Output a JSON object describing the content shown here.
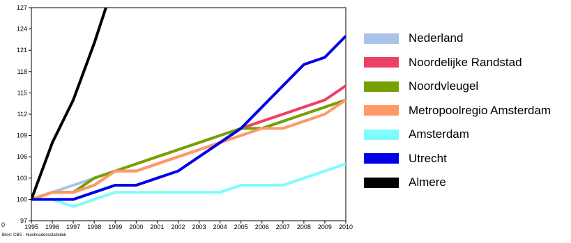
{
  "chart_data": {
    "type": "line",
    "title": "",
    "xlabel": "",
    "ylabel": "",
    "x": [
      1995,
      1996,
      1997,
      1998,
      1999,
      2000,
      2001,
      2002,
      2003,
      2004,
      2005,
      2006,
      2007,
      2008,
      2009,
      2010
    ],
    "xlim": [
      1995,
      2010
    ],
    "ylim": [
      97,
      127
    ],
    "yticks": [
      97,
      100,
      103,
      106,
      109,
      112,
      115,
      118,
      121,
      124,
      127
    ],
    "extra_tick_label": "0",
    "grid": false,
    "legend_position": "right",
    "series": [
      {
        "name": "Nederland",
        "color": "#a9c4e8",
        "values": [
          100,
          101,
          102,
          103,
          104,
          105,
          106,
          107,
          108,
          109,
          110,
          110,
          111,
          112,
          113,
          114
        ]
      },
      {
        "name": "Noordelijke Randstad",
        "color": "#ee3f64",
        "values": [
          100,
          101,
          101,
          102,
          104,
          104,
          105,
          106,
          107,
          108,
          110,
          111,
          112,
          113,
          114,
          116
        ]
      },
      {
        "name": "Noordvleugel",
        "color": "#789f00",
        "values": [
          100,
          101,
          101,
          103,
          104,
          105,
          106,
          107,
          108,
          109,
          110,
          110,
          111,
          112,
          113,
          114
        ]
      },
      {
        "name": "Metropoolregio Amsterdam",
        "color": "#ff9966",
        "values": [
          100,
          101,
          101,
          102,
          104,
          104,
          105,
          106,
          107,
          108,
          109,
          110,
          110,
          111,
          112,
          114
        ]
      },
      {
        "name": "Amsterdam",
        "color": "#7ffcfc",
        "values": [
          100,
          100,
          99,
          100,
          101,
          101,
          101,
          101,
          101,
          101,
          102,
          102,
          102,
          103,
          104,
          105
        ]
      },
      {
        "name": "Utrecht",
        "color": "#0000e6",
        "values": [
          100,
          100,
          100,
          101,
          102,
          102,
          103,
          104,
          106,
          108,
          110,
          113,
          116,
          119,
          120,
          123
        ]
      },
      {
        "name": "Almere",
        "color": "#000000",
        "values": [
          100,
          108,
          114,
          122,
          131,
          null,
          null,
          null,
          null,
          null,
          null,
          null,
          null,
          null,
          null,
          null
        ]
      }
    ],
    "source_note": "Bron: CBS - Huishoudensstatistiek"
  }
}
